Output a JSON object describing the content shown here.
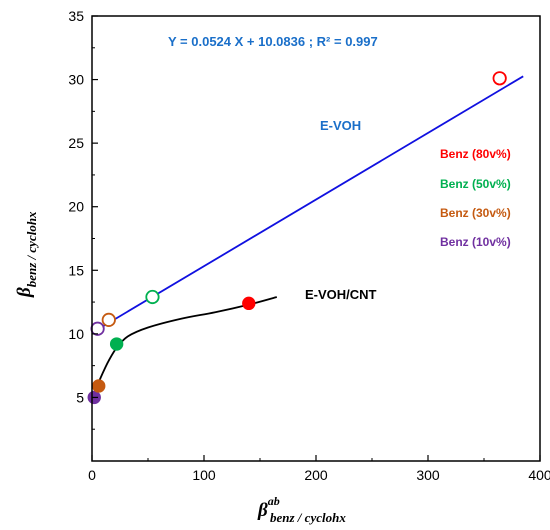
{
  "chart_data": {
    "type": "scatter",
    "xlim": [
      0,
      400
    ],
    "ylim": [
      0,
      35
    ],
    "xticks": [
      0,
      100,
      200,
      300,
      400
    ],
    "yticks": [
      5,
      10,
      15,
      20,
      25,
      30,
      35
    ],
    "xlabel": {
      "base": "β",
      "sup": "ab",
      "sub": "benz / cyclohx"
    },
    "ylabel": {
      "base": "β",
      "sub": "benz / cyclohx"
    },
    "grid": false,
    "equation_text": "Y = 0.0524 X + 10.0836    ;    R² = 0.997",
    "series": [
      {
        "name": "E-VOH",
        "line_color": "#1010e0",
        "marker": "open-circle",
        "fit": {
          "slope": 0.0524,
          "intercept": 10.0836,
          "x_range": [
            5,
            385
          ]
        },
        "points": [
          {
            "x": 5,
            "y": 10.4,
            "color": "#7030a0"
          },
          {
            "x": 15,
            "y": 11.1,
            "color": "#c55a11"
          },
          {
            "x": 54,
            "y": 12.9,
            "color": "#00b050"
          },
          {
            "x": 364,
            "y": 30.1,
            "color": "#ff0000"
          }
        ]
      },
      {
        "name": "E-VOH/CNT",
        "line_color": "#000000",
        "marker": "filled-circle",
        "curve": [
          [
            1,
            4.9
          ],
          [
            3,
            5.6
          ],
          [
            6,
            6.2
          ],
          [
            10,
            7.0
          ],
          [
            15,
            7.9
          ],
          [
            22,
            8.9
          ],
          [
            32,
            9.8
          ],
          [
            50,
            10.5
          ],
          [
            80,
            11.2
          ],
          [
            110,
            11.7
          ],
          [
            140,
            12.3
          ],
          [
            165,
            12.9
          ]
        ],
        "points": [
          {
            "x": 2,
            "y": 5.0,
            "color": "#7030a0"
          },
          {
            "x": 6,
            "y": 5.9,
            "color": "#c55a11"
          },
          {
            "x": 22,
            "y": 9.2,
            "color": "#00b050"
          },
          {
            "x": 140,
            "y": 12.4,
            "color": "#ff0000"
          }
        ]
      }
    ],
    "legend": {
      "placement": "right",
      "entries": [
        {
          "label": "Benz (80v%)",
          "color": "#ff0000"
        },
        {
          "label": "Benz (50v%)",
          "color": "#00b050"
        },
        {
          "label": "Benz (30v%)",
          "color": "#c55a11"
        },
        {
          "label": "Benz (10v%)",
          "color": "#7030a0"
        }
      ]
    },
    "series_label_colors": {
      "E-VOH": "#1a6fc9",
      "E-VOH/CNT": "#000000"
    }
  }
}
